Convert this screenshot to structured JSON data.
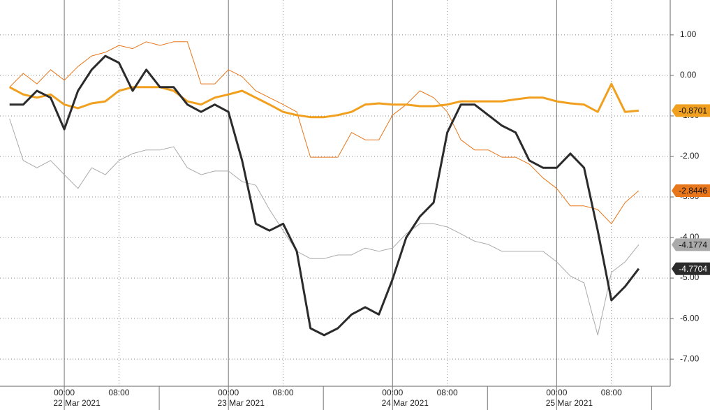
{
  "chart_data": {
    "type": "line",
    "x": [
      "2021-03-21 16:00",
      "2021-03-21 18:00",
      "2021-03-21 20:00",
      "2021-03-21 22:00",
      "2021-03-22 00:00",
      "2021-03-22 02:00",
      "2021-03-22 04:00",
      "2021-03-22 06:00",
      "2021-03-22 08:00",
      "2021-03-22 10:00",
      "2021-03-22 12:00",
      "2021-03-22 14:00",
      "2021-03-22 16:00",
      "2021-03-22 18:00",
      "2021-03-22 20:00",
      "2021-03-22 22:00",
      "2021-03-23 00:00",
      "2021-03-23 02:00",
      "2021-03-23 04:00",
      "2021-03-23 06:00",
      "2021-03-23 08:00",
      "2021-03-23 10:00",
      "2021-03-23 12:00",
      "2021-03-23 14:00",
      "2021-03-23 16:00",
      "2021-03-23 18:00",
      "2021-03-23 20:00",
      "2021-03-23 22:00",
      "2021-03-24 00:00",
      "2021-03-24 02:00",
      "2021-03-24 04:00",
      "2021-03-24 06:00",
      "2021-03-24 08:00",
      "2021-03-24 10:00",
      "2021-03-24 12:00",
      "2021-03-24 14:00",
      "2021-03-24 16:00",
      "2021-03-24 18:00",
      "2021-03-24 20:00",
      "2021-03-24 22:00",
      "2021-03-25 00:00",
      "2021-03-25 02:00",
      "2021-03-25 04:00",
      "2021-03-25 06:00",
      "2021-03-25 08:00",
      "2021-03-25 10:00",
      "2021-03-25 12:00"
    ],
    "series": [
      {
        "color": "#aaaaaa",
        "weight": "thin",
        "values": [
          -1.07,
          -2.1,
          -2.28,
          -2.1,
          -2.45,
          -2.79,
          -2.28,
          -2.45,
          -2.1,
          -1.93,
          -1.84,
          -1.84,
          -1.76,
          -2.28,
          -2.45,
          -2.36,
          -2.36,
          -2.62,
          -2.71,
          -3.31,
          -3.83,
          -4.34,
          -4.52,
          -4.52,
          -4.43,
          -4.43,
          -4.26,
          -4.34,
          -4.26,
          -3.91,
          -3.66,
          -3.66,
          -3.74,
          -3.91,
          -4.09,
          -4.17,
          -4.34,
          -4.34,
          -4.34,
          -4.34,
          -4.6,
          -4.95,
          -5.12,
          -6.41,
          -4.86,
          -4.6,
          -4.1774
        ]
      },
      {
        "color": "#e8761a",
        "weight": "thin",
        "values": [
          -0.29,
          0.05,
          -0.21,
          0.14,
          -0.12,
          0.22,
          0.48,
          0.57,
          0.74,
          0.66,
          0.83,
          0.74,
          0.83,
          0.83,
          -0.21,
          -0.21,
          0.14,
          -0.03,
          -0.38,
          -0.55,
          -0.72,
          -0.9,
          -2.02,
          -2.02,
          -2.02,
          -1.41,
          -1.59,
          -1.59,
          -0.98,
          -0.72,
          -0.38,
          -0.55,
          -0.9,
          -1.59,
          -1.84,
          -1.84,
          -2.02,
          -2.02,
          -2.19,
          -2.53,
          -2.79,
          -3.22,
          -3.22,
          -3.31,
          -3.66,
          -3.14,
          -2.8446
        ]
      },
      {
        "color": "#f0a01e",
        "weight": "bold",
        "values": [
          -0.29,
          -0.47,
          -0.55,
          -0.47,
          -0.72,
          -0.81,
          -0.69,
          -0.64,
          -0.38,
          -0.29,
          -0.29,
          -0.29,
          -0.38,
          -0.64,
          -0.72,
          -0.55,
          -0.47,
          -0.38,
          -0.55,
          -0.72,
          -0.9,
          -0.98,
          -1.03,
          -1.03,
          -0.98,
          -0.9,
          -0.72,
          -0.69,
          -0.72,
          -0.72,
          -0.76,
          -0.76,
          -0.72,
          -0.64,
          -0.64,
          -0.64,
          -0.64,
          -0.59,
          -0.55,
          -0.55,
          -0.64,
          -0.69,
          -0.72,
          -0.9,
          -0.21,
          -0.9,
          -0.8701
        ]
      },
      {
        "color": "#2b2b2b",
        "weight": "bold",
        "values": [
          -0.72,
          -0.72,
          -0.38,
          -0.55,
          -1.33,
          -0.38,
          0.14,
          0.48,
          0.31,
          -0.38,
          0.14,
          -0.29,
          -0.29,
          -0.72,
          -0.9,
          -0.72,
          -0.9,
          -2.1,
          -3.66,
          -3.83,
          -3.66,
          -4.34,
          -6.24,
          -6.41,
          -6.24,
          -5.9,
          -5.72,
          -5.9,
          -5.03,
          -4.0,
          -3.48,
          -3.14,
          -1.41,
          -0.72,
          -0.72,
          -0.98,
          -1.24,
          -1.41,
          -2.1,
          -2.28,
          -2.28,
          -1.93,
          -2.28,
          -3.83,
          -5.55,
          -5.21,
          -4.7704
        ]
      }
    ],
    "xlim": [
      "2021-03-21 14:36",
      "2021-03-25 16:36"
    ],
    "xticks": [
      {
        "value": "2021-03-22 00:00",
        "label": "00:00"
      },
      {
        "value": "2021-03-22 08:00",
        "label": "08:00"
      },
      {
        "value": "2021-03-23 00:00",
        "label": "00:00"
      },
      {
        "value": "2021-03-23 08:00",
        "label": "08:00"
      },
      {
        "value": "2021-03-24 00:00",
        "label": "00:00"
      },
      {
        "value": "2021-03-24 08:00",
        "label": "08:00"
      },
      {
        "value": "2021-03-25 00:00",
        "label": "00:00"
      },
      {
        "value": "2021-03-25 08:00",
        "label": "08:00"
      }
    ],
    "date_labels": [
      {
        "value": "2021-03-22 00:00",
        "label": "22 Mar 2021"
      },
      {
        "value": "2021-03-23 00:00",
        "label": "23 Mar 2021"
      },
      {
        "value": "2021-03-24 00:00",
        "label": "24 Mar 2021"
      },
      {
        "value": "2021-03-25 00:00",
        "label": "25 Mar 2021"
      }
    ],
    "ylim": [
      -7.67,
      1.86
    ],
    "yticks": [
      {
        "value": 1,
        "label": "1.00"
      },
      {
        "value": 0,
        "label": "0.00"
      },
      {
        "value": -1,
        "label": "-1.00"
      },
      {
        "value": -2,
        "label": "-2.00"
      },
      {
        "value": -3,
        "label": "-3.00"
      },
      {
        "value": -4,
        "label": "-4.00"
      },
      {
        "value": -5,
        "label": "-5.00"
      },
      {
        "value": -6,
        "label": "-6.00"
      },
      {
        "value": -7,
        "label": "-7.00"
      }
    ],
    "grid": true
  }
}
